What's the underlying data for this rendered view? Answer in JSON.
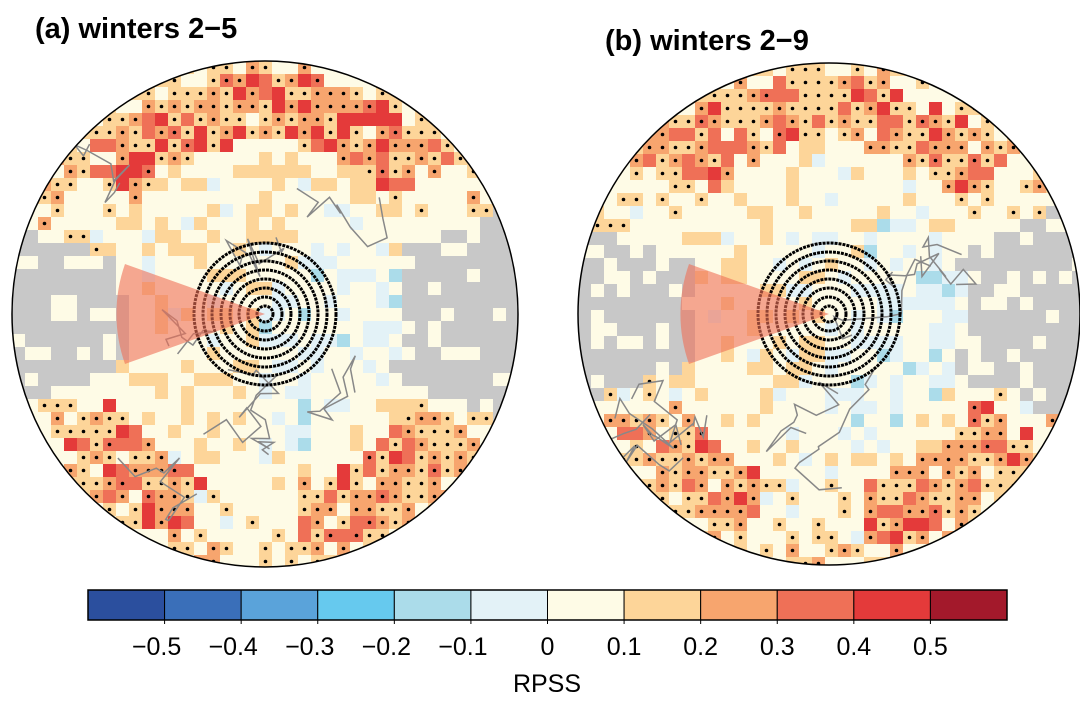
{
  "panels": [
    {
      "title": "(a) winters 2−5"
    },
    {
      "title": "(b) winters 2−9"
    }
  ],
  "colorbar": {
    "label": "RPSS",
    "lim": [
      -0.6,
      0.6
    ],
    "colors": [
      "#2b4f9e",
      "#3a6fb9",
      "#5aa3da",
      "#66c9ee",
      "#abdcea",
      "#e3f2f7",
      "#fefbe6",
      "#fdd599",
      "#f7a56e",
      "#ef7057",
      "#e43a3a",
      "#a3192b"
    ],
    "ticks": [
      {
        "value": -0.5,
        "label": "−0.5"
      },
      {
        "value": -0.4,
        "label": "−0.4"
      },
      {
        "value": -0.3,
        "label": "−0.3"
      },
      {
        "value": -0.2,
        "label": "−0.2"
      },
      {
        "value": -0.1,
        "label": "−0.1"
      },
      0,
      0.1,
      0.2,
      0.3,
      0.4,
      0.5
    ]
  }
}
